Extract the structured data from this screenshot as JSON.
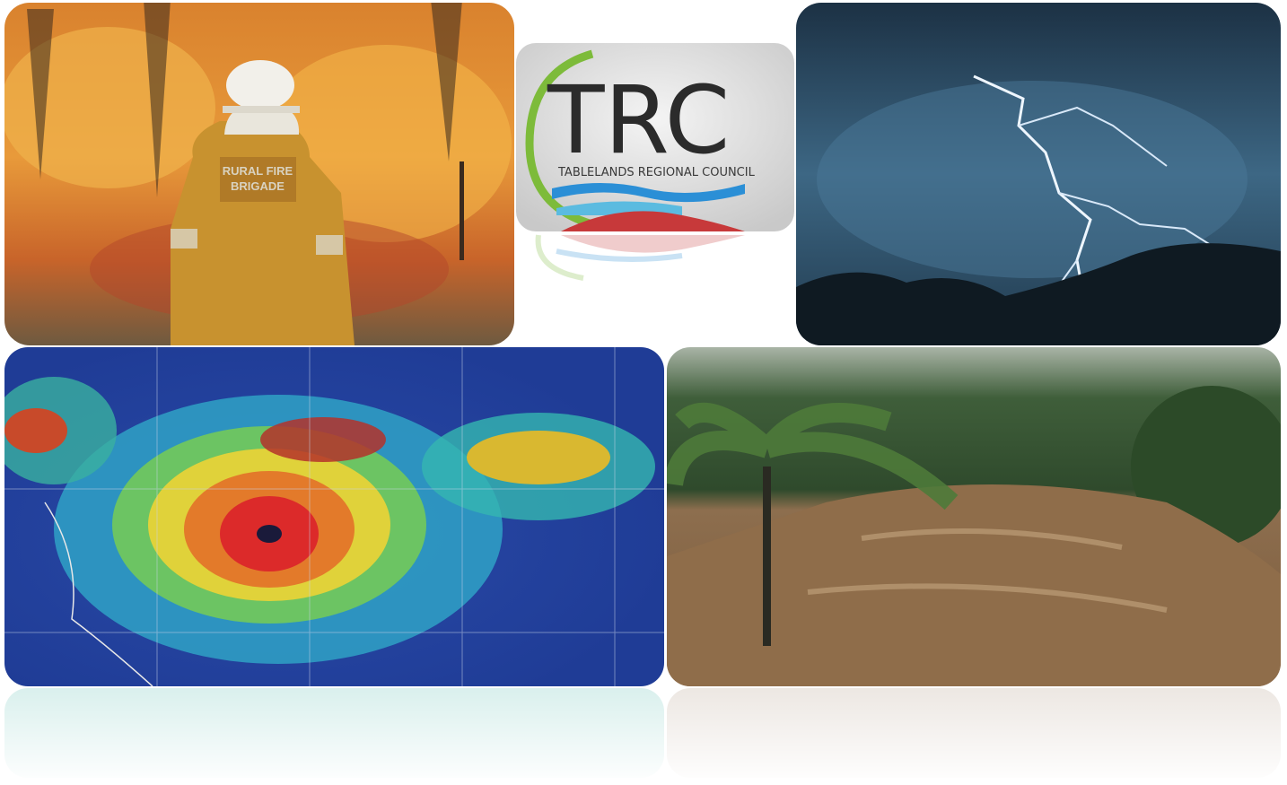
{
  "logo": {
    "abbreviation": "TRC",
    "name": "TABLELANDS REGIONAL COUNCIL"
  },
  "photos": {
    "fire": {
      "jacket_text": [
        "RURAL FIRE",
        "BRIGADE"
      ]
    }
  }
}
